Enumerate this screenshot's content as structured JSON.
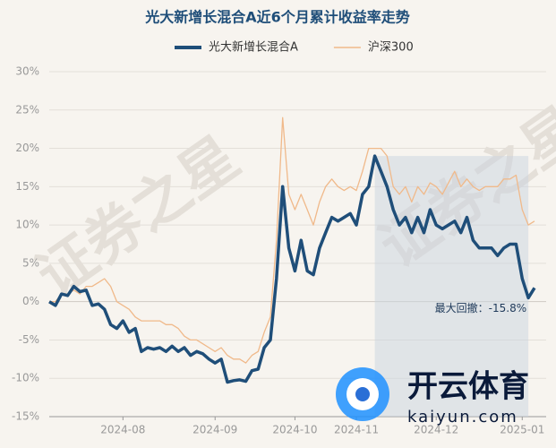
{
  "chart_data": {
    "type": "line",
    "title": "光大新增长混合A近6个月累计收益率走势",
    "categories": [
      null,
      null,
      null,
      null,
      null,
      null,
      null,
      null,
      null,
      null,
      null,
      null,
      "2024-08",
      null,
      null,
      null,
      null,
      null,
      null,
      null,
      null,
      null,
      null,
      null,
      null,
      null,
      null,
      "2024-09",
      null,
      null,
      null,
      null,
      null,
      null,
      null,
      null,
      null,
      null,
      null,
      null,
      "2024-10",
      null,
      null,
      null,
      null,
      null,
      null,
      null,
      null,
      null,
      "2024-11",
      null,
      null,
      null,
      null,
      null,
      null,
      null,
      null,
      null,
      null,
      null,
      null,
      "2024-12",
      null,
      null,
      null,
      null,
      null,
      null,
      null,
      null,
      null,
      null,
      null,
      null,
      null,
      "2025-01",
      null,
      null
    ],
    "series": [
      {
        "name": "光大新增长混合A",
        "color": "#1f4e79",
        "values": [
          0,
          -0.5,
          1,
          0.8,
          2,
          1.3,
          1.5,
          -0.5,
          -0.3,
          -1,
          -3,
          -3.5,
          -2.5,
          -4,
          -3.5,
          -6.5,
          -6,
          -6.2,
          -6,
          -6.5,
          -5.8,
          -6.5,
          -6,
          -7,
          -6.5,
          -6.8,
          -7.5,
          -8,
          -7.5,
          -10.5,
          -10.3,
          -10.2,
          -10.4,
          -9,
          -8.8,
          -6,
          -5,
          3,
          15,
          7,
          4,
          8,
          4,
          3.5,
          7,
          9,
          11,
          10.5,
          11,
          11.5,
          10,
          14,
          15,
          19,
          17,
          15,
          12,
          10,
          11,
          9,
          11,
          9,
          12,
          10,
          9.5,
          10,
          10.5,
          9,
          11,
          8,
          7,
          7,
          7,
          6,
          7,
          7.5,
          7.5,
          3,
          0.5,
          1.8
        ]
      },
      {
        "name": "沪深300",
        "color": "#f0b98a",
        "values": [
          0,
          0,
          1,
          1,
          1.5,
          1,
          2,
          2,
          2.5,
          3,
          2,
          0,
          -0.5,
          -1,
          -2,
          -2.5,
          -2.5,
          -2.5,
          -2.5,
          -3,
          -3,
          -3.5,
          -4.5,
          -5,
          -5,
          -5.5,
          -6,
          -6.5,
          -6,
          -7,
          -7.5,
          -7.5,
          -8,
          -7,
          -6.5,
          -4,
          -2,
          8,
          24,
          14,
          12,
          14,
          12,
          10,
          13,
          15,
          16,
          15,
          14.5,
          15,
          14.5,
          17,
          20,
          20,
          20,
          19,
          15,
          14,
          15,
          13,
          15,
          14,
          15.5,
          15,
          14,
          15.5,
          17,
          15,
          16,
          15,
          14.5,
          15,
          15,
          15,
          16,
          16,
          16.5,
          12,
          10,
          10.5
        ]
      }
    ],
    "ylim": [
      -15,
      30
    ],
    "yticks": [
      {
        "value": -15,
        "label": "-15%"
      },
      {
        "value": -10,
        "label": "-10%"
      },
      {
        "value": -5,
        "label": "-5%"
      },
      {
        "value": 0,
        "label": "0%"
      },
      {
        "value": 5,
        "label": "5%"
      },
      {
        "value": 10,
        "label": "10%"
      },
      {
        "value": 15,
        "label": "15%"
      },
      {
        "value": 20,
        "label": "20%"
      },
      {
        "value": 25,
        "label": "25%"
      },
      {
        "value": 30,
        "label": "30%"
      }
    ],
    "grid": true,
    "annotation": "最大回撤：-15.8%",
    "watermark": "证券之星",
    "logo_text": "开云体育",
    "logo_url": "kaiyun.com"
  }
}
